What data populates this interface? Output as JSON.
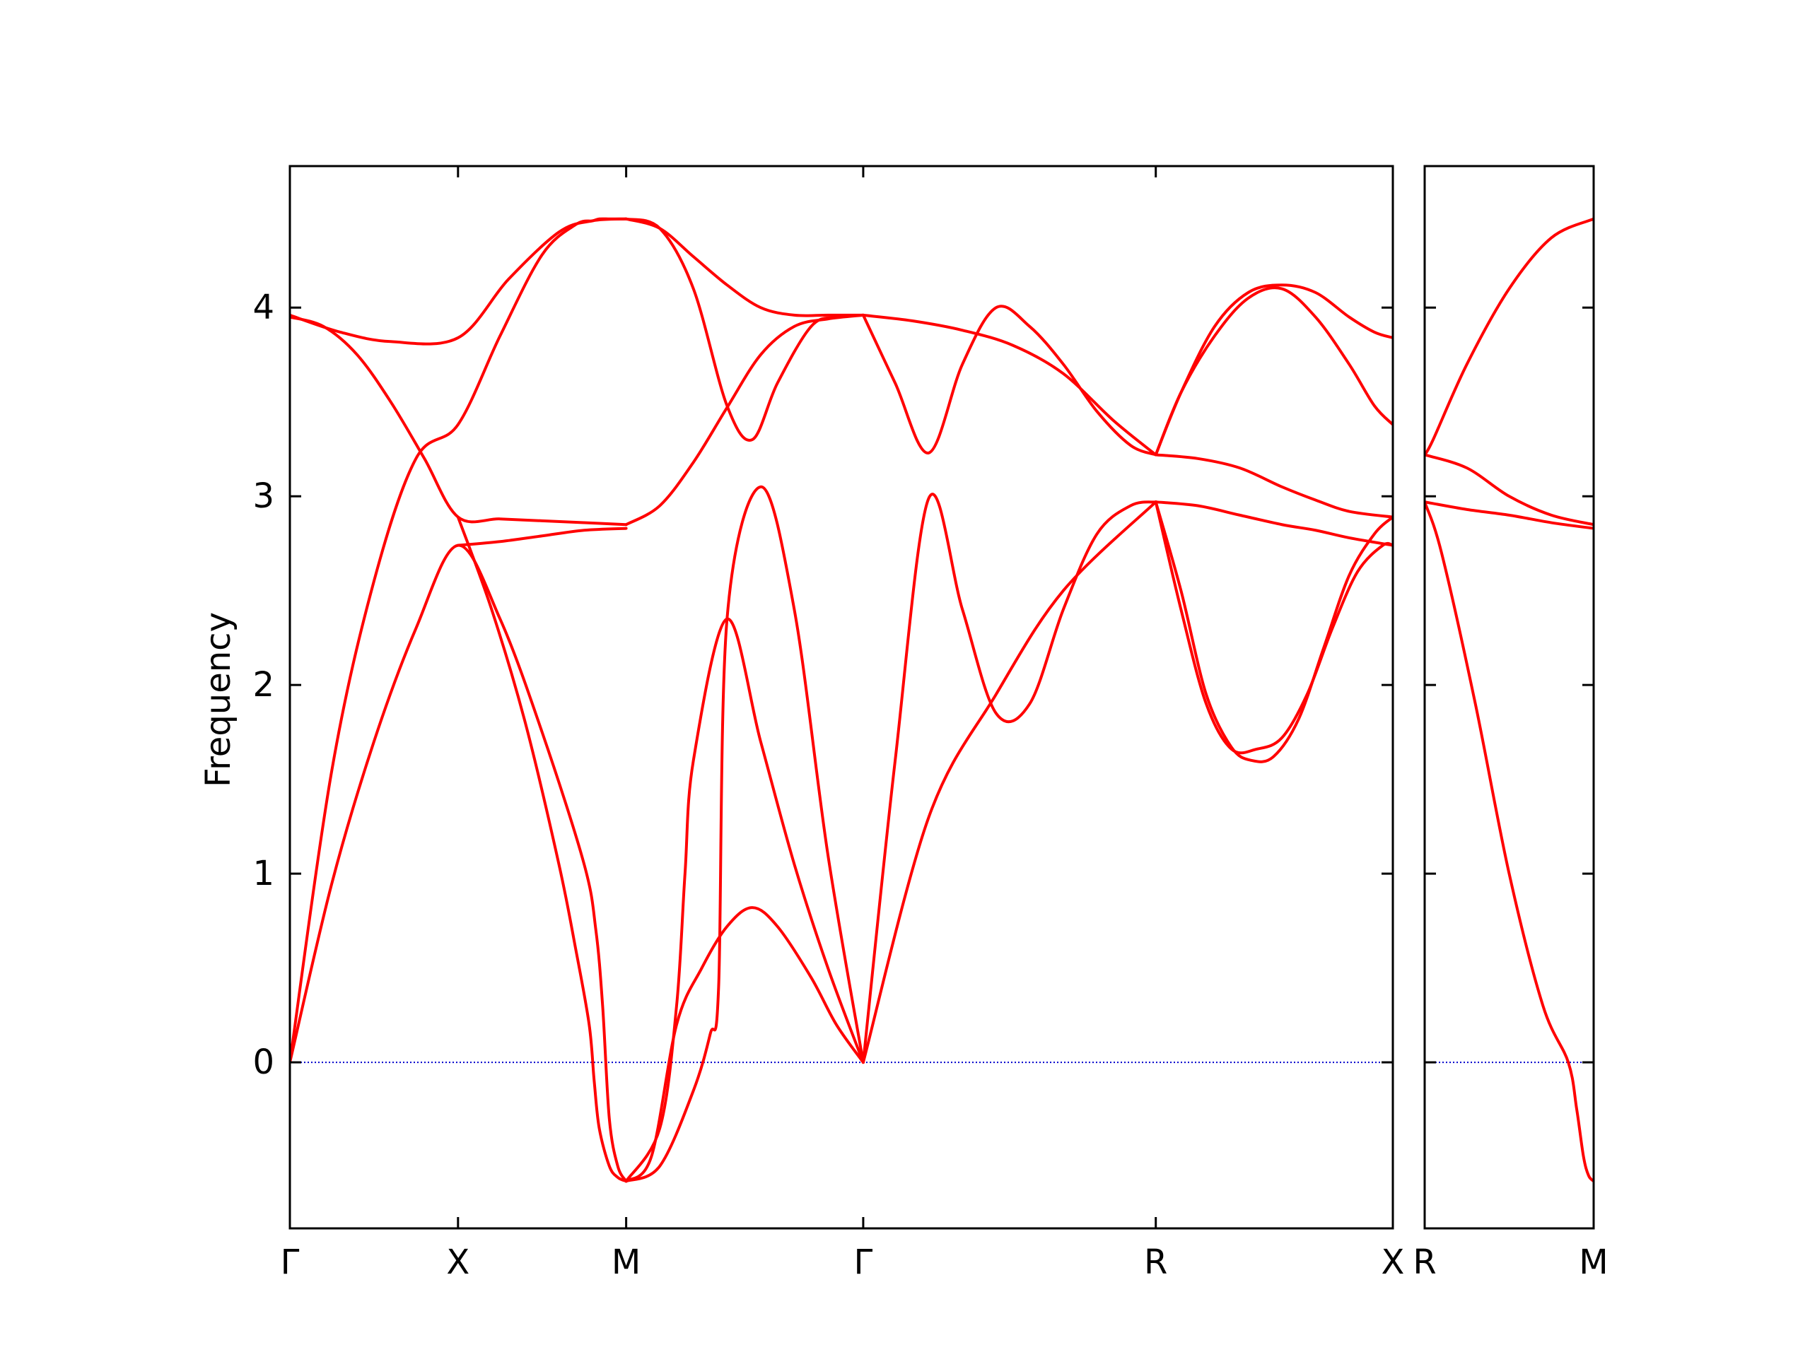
{
  "chart_data": {
    "type": "line",
    "title": "",
    "ylabel": "Frequency",
    "xlabel": "",
    "ylim": [
      -0.88,
      4.75
    ],
    "yticks": [
      0,
      1,
      2,
      3,
      4
    ],
    "grid": false,
    "colors": {
      "band": "#ff0000",
      "zero_line": "#0000cc",
      "axes": "#000000"
    },
    "panels": [
      {
        "name": "main",
        "xlim": [
          0,
          6.56
        ],
        "high_symmetry_points": [
          {
            "label": "Γ",
            "x": 0
          },
          {
            "label": "X",
            "x": 1.0
          },
          {
            "label": "M",
            "x": 2.0
          },
          {
            "label": "Γ",
            "x": 3.41
          },
          {
            "label": "R",
            "x": 5.15
          },
          {
            "label": "X",
            "x": 6.56
          }
        ],
        "bands": [
          {
            "x": [
              0,
              0.25,
              0.5,
              0.75,
              1.0,
              1.25,
              1.5,
              1.75,
              1.82,
              1.86,
              1.9,
              1.95,
              2.0
            ],
            "y": [
              0,
              0.95,
              1.7,
              2.3,
              2.74,
              2.35,
              1.75,
              1.05,
              0.7,
              0.3,
              -0.3,
              -0.55,
              -0.63
            ]
          },
          {
            "x": [
              0,
              0.25,
              0.5,
              0.75,
              1.0,
              1.25,
              1.5,
              1.7,
              1.8,
              1.84,
              1.9,
              1.95,
              2.0
            ],
            "y": [
              0,
              1.55,
              2.55,
              3.2,
              3.38,
              3.85,
              4.28,
              4.44,
              4.46,
              4.47,
              4.47,
              4.47,
              4.47
            ]
          },
          {
            "x": [
              0,
              0.2,
              0.4,
              0.6,
              0.8,
              1.0,
              1.25,
              1.5,
              1.75,
              2.0
            ],
            "y": [
              3.95,
              3.9,
              3.75,
              3.5,
              3.2,
              2.89,
              2.88,
              2.87,
              2.86,
              2.85
            ]
          },
          {
            "x": [
              0,
              0.3,
              0.6,
              1.0,
              1.3,
              1.6,
              1.8,
              2.0
            ],
            "y": [
              3.96,
              3.87,
              3.82,
              3.84,
              4.15,
              4.4,
              4.46,
              4.47
            ]
          },
          {
            "x": [
              1.0,
              1.25,
              1.5,
              1.75,
              2.0
            ],
            "y": [
              2.74,
              2.76,
              2.79,
              2.82,
              2.83
            ]
          },
          {
            "x": [
              1.0,
              1.2,
              1.4,
              1.6,
              1.7,
              1.78,
              1.81,
              1.84,
              1.9,
              1.95,
              2.0
            ],
            "y": [
              2.89,
              2.4,
              1.8,
              1.05,
              0.6,
              0.2,
              -0.1,
              -0.35,
              -0.55,
              -0.61,
              -0.63
            ]
          },
          {
            "x": [
              2.0,
              2.2,
              2.4,
              2.5,
              2.55,
              2.6,
              2.8,
              3.0,
              3.2,
              3.41
            ],
            "y": [
              -0.63,
              -0.55,
              -0.15,
              0.15,
              0.4,
              2.35,
              3.05,
              2.4,
              1.1,
              0
            ]
          },
          {
            "x": [
              2.0,
              2.2,
              2.3,
              2.35,
              2.4,
              2.6,
              2.8,
              3.0,
              3.2,
              3.41
            ],
            "y": [
              -0.63,
              -0.35,
              0.3,
              1.0,
              1.6,
              2.35,
              1.7,
              1.05,
              0.5,
              0
            ]
          },
          {
            "x": [
              2.0,
              2.15,
              2.3,
              2.45,
              2.6,
              2.75,
              2.9,
              3.1,
              3.25,
              3.41
            ],
            "y": [
              -0.63,
              -0.5,
              0.2,
              0.5,
              0.72,
              0.82,
              0.72,
              0.45,
              0.2,
              0
            ]
          },
          {
            "x": [
              2.0,
              2.2,
              2.4,
              2.6,
              2.8,
              3.0,
              3.2,
              3.41
            ],
            "y": [
              2.85,
              2.95,
              3.18,
              3.47,
              3.75,
              3.9,
              3.94,
              3.96
            ]
          },
          {
            "x": [
              2.0,
              2.2,
              2.4,
              2.6,
              2.75,
              2.9,
              3.1,
              3.25,
              3.41
            ],
            "y": [
              4.47,
              4.42,
              4.1,
              3.48,
              3.3,
              3.6,
              3.9,
              3.95,
              3.96
            ]
          },
          {
            "x": [
              2.0,
              2.2,
              2.4,
              2.6,
              2.8,
              3.0,
              3.2,
              3.41
            ],
            "y": [
              4.47,
              4.42,
              4.27,
              4.12,
              4.0,
              3.96,
              3.96,
              3.96
            ]
          },
          {
            "x": [
              3.41,
              3.8,
              4.2,
              4.6,
              5.15
            ],
            "y": [
              0,
              1.3,
              1.95,
              2.5,
              2.97
            ]
          },
          {
            "x": [
              3.41,
              3.6,
              3.8,
              4.0,
              4.2,
              4.4,
              4.6,
              4.8,
              5.0,
              5.15
            ],
            "y": [
              0,
              1.6,
              2.99,
              2.4,
              1.85,
              1.9,
              2.4,
              2.8,
              2.95,
              2.97
            ]
          },
          {
            "x": [
              3.41,
              3.6,
              3.8,
              4.0,
              4.2,
              4.4,
              4.6,
              4.8,
              5.0,
              5.15
            ],
            "y": [
              3.96,
              3.6,
              3.23,
              3.7,
              4.0,
              3.9,
              3.7,
              3.45,
              3.27,
              3.22
            ]
          },
          {
            "x": [
              3.41,
              3.7,
              4.0,
              4.3,
              4.6,
              4.9,
              5.15
            ],
            "y": [
              3.96,
              3.93,
              3.88,
              3.8,
              3.65,
              3.4,
              3.22
            ]
          },
          {
            "x": [
              5.15,
              5.4,
              5.65,
              5.9,
              6.1,
              6.3,
              6.56
            ],
            "y": [
              2.97,
              2.95,
              2.9,
              2.85,
              2.82,
              2.78,
              2.74
            ]
          },
          {
            "x": [
              5.15,
              5.4,
              5.65,
              5.9,
              6.1,
              6.3,
              6.56
            ],
            "y": [
              3.22,
              3.2,
              3.15,
              3.05,
              2.98,
              2.92,
              2.89
            ]
          },
          {
            "x": [
              5.15,
              5.3,
              5.45,
              5.6,
              5.72,
              5.85,
              6.0,
              6.15,
              6.3,
              6.45,
              6.56
            ],
            "y": [
              2.97,
              2.5,
              1.95,
              1.67,
              1.6,
              1.62,
              1.82,
              2.2,
              2.58,
              2.8,
              2.89
            ]
          },
          {
            "x": [
              5.15,
              5.3,
              5.45,
              5.6,
              5.75,
              5.9,
              6.05,
              6.2,
              6.35,
              6.5,
              6.56
            ],
            "y": [
              2.97,
              2.4,
              1.9,
              1.66,
              1.66,
              1.72,
              1.95,
              2.3,
              2.6,
              2.74,
              2.74
            ]
          },
          {
            "x": [
              5.15,
              5.3,
              5.5,
              5.7,
              5.9,
              6.1,
              6.3,
              6.45,
              6.56
            ],
            "y": [
              3.22,
              3.55,
              3.9,
              4.08,
              4.12,
              4.08,
              3.95,
              3.87,
              3.84
            ]
          },
          {
            "x": [
              5.15,
              5.3,
              5.5,
              5.7,
              5.9,
              6.1,
              6.3,
              6.45,
              6.56
            ],
            "y": [
              3.22,
              3.55,
              3.85,
              4.05,
              4.1,
              3.95,
              3.7,
              3.48,
              3.38
            ]
          }
        ]
      },
      {
        "name": "side",
        "xlim": [
          0,
          1
        ],
        "high_symmetry_points": [
          {
            "label": "R",
            "x": 0
          },
          {
            "label": "M",
            "x": 1
          }
        ],
        "bands": [
          {
            "x": [
              0,
              0.1,
              0.3,
              0.5,
              0.7,
              0.85,
              0.9,
              0.94,
              0.97,
              1.0
            ],
            "y": [
              2.97,
              2.7,
              1.9,
              1.0,
              0.3,
              0.0,
              -0.25,
              -0.5,
              -0.6,
              -0.63
            ]
          },
          {
            "x": [
              0,
              0.25,
              0.5,
              0.75,
              1.0
            ],
            "y": [
              2.97,
              2.93,
              2.9,
              2.86,
              2.83
            ]
          },
          {
            "x": [
              0,
              0.25,
              0.5,
              0.75,
              1.0
            ],
            "y": [
              3.22,
              3.15,
              3.0,
              2.9,
              2.85
            ]
          },
          {
            "x": [
              0,
              0.05,
              0.25,
              0.5,
              0.75,
              1.0
            ],
            "y": [
              3.22,
              3.3,
              3.7,
              4.1,
              4.37,
              4.47
            ]
          }
        ]
      }
    ]
  }
}
